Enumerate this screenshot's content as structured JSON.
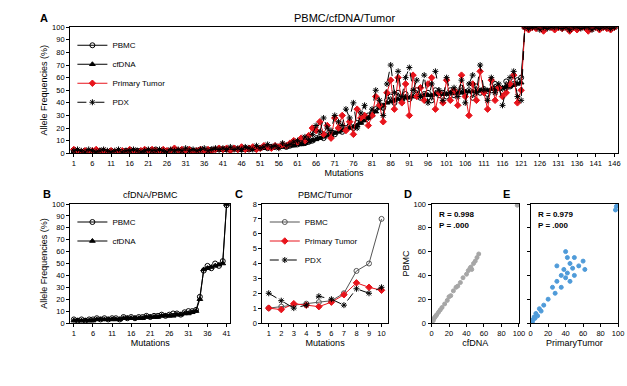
{
  "chart_data": [
    {
      "type": "line",
      "panel": "A",
      "title": "PBMC/cfDNA/Tumor",
      "x_label": "Mutations",
      "y_label": "Allele Frequencies (%)",
      "x": [
        1,
        2,
        3,
        4,
        5,
        6,
        7,
        8,
        9,
        10,
        11,
        12,
        13,
        14,
        15,
        16,
        17,
        18,
        19,
        20,
        21,
        22,
        23,
        24,
        25,
        26,
        27,
        28,
        29,
        30,
        31,
        32,
        33,
        34,
        35,
        36,
        37,
        38,
        39,
        40,
        41,
        42,
        43,
        44,
        45,
        46,
        47,
        48,
        49,
        50,
        51,
        52,
        53,
        54,
        55,
        56,
        57,
        58,
        59,
        60,
        61,
        62,
        63,
        64,
        65,
        66,
        67,
        68,
        69,
        70,
        71,
        72,
        73,
        74,
        75,
        76,
        77,
        78,
        79,
        80,
        81,
        82,
        83,
        84,
        85,
        86,
        87,
        88,
        89,
        90,
        91,
        92,
        93,
        94,
        95,
        96,
        97,
        98,
        99,
        100,
        101,
        102,
        103,
        104,
        105,
        106,
        107,
        108,
        109,
        110,
        111,
        112,
        113,
        114,
        115,
        116,
        117,
        118,
        119,
        120,
        121,
        122,
        123,
        124,
        125,
        126,
        127,
        128,
        129,
        130,
        131,
        132,
        133,
        134,
        135,
        136,
        137,
        138,
        139,
        140,
        141,
        142,
        143,
        144,
        145,
        146
      ],
      "series": [
        {
          "name": "PBMC",
          "color": "#000000",
          "marker": "circle-open",
          "line_style": "solid",
          "values": [
            2,
            1,
            1,
            2,
            1,
            1,
            1,
            2,
            1,
            1,
            2,
            1,
            1,
            1,
            2,
            2,
            1,
            2,
            2,
            2,
            2,
            2,
            3,
            2,
            2,
            2,
            2,
            3,
            2,
            2,
            2,
            3,
            2,
            2,
            3,
            2,
            2,
            3,
            3,
            3,
            3,
            3,
            3,
            4,
            3,
            3,
            4,
            3,
            4,
            4,
            4,
            5,
            4,
            5,
            5,
            5,
            6,
            5,
            6,
            7,
            7,
            8,
            8,
            9,
            10,
            12,
            13,
            12,
            15,
            16,
            15,
            18,
            17,
            20,
            22,
            20,
            24,
            25,
            27,
            30,
            32,
            35,
            38,
            36,
            42,
            45,
            40,
            48,
            42,
            47,
            43,
            46,
            50,
            44,
            47,
            48,
            42,
            50,
            46,
            48,
            45,
            50,
            46,
            49,
            52,
            47,
            50,
            44,
            53,
            48,
            51,
            47,
            50,
            55,
            52,
            49,
            57,
            53,
            55,
            58,
            60,
            100,
            100,
            100,
            100,
            100,
            100,
            100,
            100,
            100,
            100,
            100,
            100,
            100,
            100,
            100,
            100,
            100,
            100,
            100,
            100,
            100,
            100,
            100,
            100,
            100
          ]
        },
        {
          "name": "cfDNA",
          "color": "#000000",
          "marker": "triangle-up",
          "line_style": "solid",
          "values": [
            1,
            1,
            1,
            1,
            1,
            1,
            1,
            1,
            1,
            1,
            1,
            1,
            1,
            1,
            1,
            2,
            2,
            2,
            2,
            2,
            2,
            2,
            2,
            2,
            2,
            2,
            2,
            2,
            2,
            2,
            2,
            2,
            2,
            2,
            2,
            2,
            2,
            2,
            3,
            3,
            3,
            3,
            3,
            3,
            3,
            3,
            3,
            3,
            3,
            4,
            4,
            4,
            4,
            4,
            5,
            5,
            5,
            5,
            6,
            6,
            7,
            7,
            8,
            9,
            10,
            11,
            12,
            13,
            14,
            15,
            16,
            17,
            18,
            19,
            20,
            21,
            22,
            24,
            26,
            28,
            30,
            33,
            36,
            38,
            40,
            41,
            42,
            43,
            43,
            44,
            44,
            45,
            45,
            45,
            46,
            46,
            46,
            47,
            47,
            47,
            47,
            48,
            48,
            48,
            48,
            49,
            49,
            49,
            49,
            50,
            50,
            50,
            51,
            51,
            52,
            52,
            53,
            53,
            54,
            55,
            56,
            100,
            100,
            100,
            100,
            100,
            100,
            100,
            100,
            100,
            100,
            100,
            100,
            100,
            100,
            100,
            100,
            100,
            100,
            100,
            100,
            100,
            100,
            100,
            100,
            100
          ]
        },
        {
          "name": "Primary Tumor",
          "color": "#e8141c",
          "marker": "diamond",
          "line_style": "solid",
          "values": [
            3,
            2,
            1,
            2,
            1,
            2,
            3,
            1,
            2,
            1,
            2,
            1,
            2,
            2,
            1,
            3,
            2,
            1,
            2,
            3,
            2,
            3,
            2,
            1,
            3,
            2,
            2,
            4,
            2,
            3,
            2,
            3,
            1,
            2,
            3,
            2,
            3,
            2,
            3,
            4,
            3,
            4,
            2,
            4,
            3,
            5,
            3,
            4,
            5,
            3,
            4,
            6,
            5,
            4,
            6,
            5,
            7,
            6,
            8,
            10,
            9,
            12,
            10,
            14,
            20,
            18,
            25,
            15,
            22,
            12,
            28,
            20,
            30,
            18,
            25,
            15,
            35,
            28,
            30,
            22,
            30,
            45,
            38,
            25,
            48,
            58,
            35,
            60,
            40,
            55,
            30,
            62,
            45,
            52,
            42,
            55,
            60,
            35,
            48,
            40,
            58,
            42,
            50,
            38,
            62,
            45,
            30,
            55,
            42,
            65,
            48,
            35,
            58,
            42,
            52,
            45,
            48,
            55,
            62,
            40,
            50,
            100,
            98,
            100,
            99,
            100,
            97,
            100,
            100,
            98,
            100,
            99,
            100,
            97,
            100,
            98,
            100,
            100,
            97,
            99,
            100,
            98,
            100,
            99,
            98,
            100
          ]
        },
        {
          "name": "PDX",
          "color": "#000000",
          "marker": "asterisk-open",
          "line_style": "dash",
          "values": [
            2,
            3,
            2,
            1,
            3,
            2,
            1,
            2,
            3,
            2,
            1,
            2,
            3,
            1,
            2,
            2,
            3,
            2,
            1,
            2,
            3,
            2,
            2,
            3,
            2,
            1,
            3,
            2,
            3,
            2,
            4,
            2,
            3,
            2,
            3,
            4,
            2,
            3,
            4,
            3,
            4,
            3,
            5,
            3,
            4,
            3,
            5,
            4,
            3,
            6,
            4,
            5,
            7,
            5,
            6,
            4,
            8,
            6,
            7,
            9,
            10,
            8,
            13,
            11,
            15,
            22,
            17,
            28,
            20,
            18,
            30,
            25,
            22,
            35,
            28,
            40,
            20,
            32,
            38,
            28,
            35,
            50,
            42,
            30,
            55,
            70,
            48,
            65,
            45,
            60,
            68,
            50,
            58,
            45,
            62,
            40,
            55,
            65,
            50,
            42,
            60,
            48,
            52,
            45,
            58,
            40,
            55,
            62,
            48,
            70,
            50,
            42,
            60,
            48,
            55,
            38,
            52,
            60,
            65,
            45,
            42,
            100,
            99,
            100,
            100,
            98,
            100,
            99,
            100,
            100,
            100,
            99,
            100,
            98,
            100,
            100,
            99,
            100,
            100,
            98,
            100,
            99,
            100,
            100,
            99,
            100
          ]
        }
      ],
      "xlim": [
        0,
        147
      ],
      "xticks": [
        1,
        6,
        11,
        16,
        21,
        26,
        31,
        36,
        41,
        46,
        51,
        56,
        61,
        66,
        71,
        76,
        81,
        86,
        91,
        96,
        101,
        106,
        111,
        116,
        121,
        126,
        131,
        136,
        141,
        146
      ],
      "ylim": [
        0,
        100
      ],
      "yticks": [
        0,
        10,
        20,
        30,
        40,
        50,
        60,
        70,
        80,
        90,
        100
      ],
      "legend": "upper left",
      "grid": false
    },
    {
      "type": "line",
      "panel": "B",
      "title": "cfDNA/PBMC",
      "x_label": "Mutations",
      "y_label": "Allele Frequencies (%)",
      "x": [
        1,
        2,
        3,
        4,
        5,
        6,
        7,
        8,
        9,
        10,
        11,
        12,
        13,
        14,
        15,
        16,
        17,
        18,
        19,
        20,
        21,
        22,
        23,
        24,
        25,
        26,
        27,
        28,
        29,
        30,
        31,
        32,
        33,
        34,
        35,
        36,
        37,
        38,
        39,
        40,
        41
      ],
      "series": [
        {
          "name": "PBMC",
          "color": "#000000",
          "marker": "circle-open",
          "line_style": "solid",
          "values": [
            3,
            2,
            3,
            2,
            3,
            3,
            4,
            3,
            4,
            3,
            4,
            4,
            3,
            5,
            4,
            5,
            4,
            5,
            5,
            6,
            5,
            6,
            6,
            7,
            6,
            7,
            8,
            8,
            7,
            9,
            10,
            10,
            11,
            22,
            44,
            48,
            46,
            50,
            48,
            52,
            99
          ]
        },
        {
          "name": "cfDNA",
          "color": "#000000",
          "marker": "triangle-up",
          "line_style": "solid",
          "values": [
            2,
            2,
            2,
            2,
            2,
            2,
            3,
            3,
            3,
            3,
            3,
            3,
            3,
            4,
            4,
            4,
            4,
            4,
            4,
            5,
            5,
            5,
            5,
            6,
            6,
            6,
            6,
            7,
            7,
            8,
            8,
            9,
            10,
            20,
            45,
            46,
            47,
            48,
            49,
            50,
            100
          ]
        }
      ],
      "xlim": [
        0,
        42
      ],
      "xticks": [
        1,
        6,
        11,
        16,
        21,
        26,
        31,
        36,
        41
      ],
      "ylim": [
        0,
        100
      ],
      "yticks": [
        0,
        10,
        20,
        30,
        40,
        50,
        60,
        70,
        80,
        90,
        100
      ],
      "legend": "upper left",
      "grid": false
    },
    {
      "type": "line",
      "panel": "C",
      "title": "PBMC/Tumor",
      "x_label": "Mutations",
      "x": [
        1,
        2,
        3,
        4,
        5,
        6,
        7,
        8,
        9,
        10
      ],
      "series": [
        {
          "name": "PBMC",
          "color": "#555555",
          "marker": "circle-open",
          "line_style": "solid",
          "values": [
            1.0,
            1.1,
            1.2,
            1.3,
            1.4,
            1.5,
            2.0,
            3.5,
            4.0,
            7.0
          ]
        },
        {
          "name": "Primary Tumor",
          "color": "#e8141c",
          "marker": "diamond",
          "line_style": "solid",
          "values": [
            1.0,
            0.9,
            1.3,
            1.2,
            1.1,
            1.4,
            1.9,
            2.7,
            2.4,
            2.2
          ]
        },
        {
          "name": "PDX",
          "color": "#000000",
          "marker": "asterisk-open",
          "line_style": "dash",
          "values": [
            2.0,
            1.5,
            1.0,
            1.2,
            1.8,
            1.6,
            1.2,
            2.3,
            2.0,
            2.4
          ]
        }
      ],
      "xlim": [
        0.5,
        10.5
      ],
      "xticks": [
        1,
        2,
        3,
        4,
        5,
        6,
        7,
        8,
        9,
        10
      ],
      "ylim": [
        0,
        8
      ],
      "yticks": [
        0,
        1,
        2,
        3,
        4,
        5,
        6,
        7,
        8
      ],
      "legend": "upper left",
      "grid": false
    },
    {
      "type": "scatter",
      "panel": "D",
      "x_label": "cfDNA",
      "y_label": "PBMC",
      "annotations": [
        "R = 0.998",
        "P = .000"
      ],
      "x": [
        0,
        1,
        2,
        3,
        4,
        5,
        6,
        8,
        10,
        12,
        15,
        18,
        20,
        22,
        25,
        28,
        30,
        33,
        36,
        40,
        42,
        44,
        45,
        46,
        48,
        50,
        52,
        54,
        98,
        99,
        100
      ],
      "values": [
        1,
        2,
        2,
        4,
        5,
        6,
        7,
        9,
        11,
        13,
        16,
        19,
        22,
        23,
        27,
        30,
        31,
        34,
        38,
        41,
        44,
        46,
        47,
        45,
        50,
        52,
        55,
        58,
        99,
        100,
        100
      ],
      "color": "#a6a6a6",
      "marker": "circle",
      "xlim": [
        0,
        100
      ],
      "xticks": [
        0,
        20,
        40,
        60,
        80,
        100
      ],
      "ylim": [
        0,
        100
      ],
      "yticks": [
        0,
        20,
        40,
        60,
        80,
        100
      ],
      "grid": false
    },
    {
      "type": "scatter",
      "panel": "E",
      "x_label": "PrimaryTumor",
      "annotations": [
        "R = 0.979",
        "P = .000"
      ],
      "x": [
        1,
        2,
        3,
        4,
        5,
        6,
        8,
        10,
        12,
        15,
        20,
        25,
        28,
        30,
        35,
        38,
        40,
        42,
        45,
        48,
        50,
        55,
        60,
        62,
        40,
        35,
        45,
        30,
        50,
        42,
        97,
        98,
        100
      ],
      "values": [
        2,
        1,
        3,
        5,
        4,
        8,
        6,
        12,
        10,
        15,
        20,
        30,
        25,
        35,
        40,
        45,
        38,
        42,
        50,
        46,
        55,
        48,
        52,
        45,
        60,
        30,
        35,
        48,
        40,
        55,
        95,
        98,
        100
      ],
      "color": "#4f9bd9",
      "marker": "circle",
      "xlim": [
        0,
        100
      ],
      "xticks": [
        0,
        20,
        40,
        60,
        80,
        100
      ],
      "ylim": [
        0,
        100
      ],
      "yticks": [
        0,
        20,
        40,
        60,
        80,
        100
      ],
      "grid": false,
      "tick_labels": "x"
    }
  ]
}
